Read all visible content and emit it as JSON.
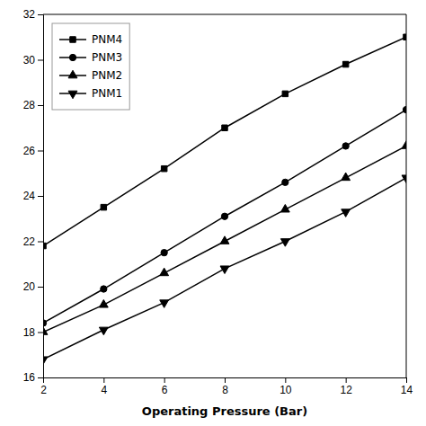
{
  "chart_data": {
    "type": "line",
    "x_label": "Operating Pressure (Bar)",
    "x": [
      2,
      4,
      6,
      8,
      10,
      12,
      14
    ],
    "series": [
      {
        "name": "PNM4",
        "color": "#000000",
        "marker": "square",
        "values": [
          21.8,
          23.5,
          25.2,
          27.0,
          28.5,
          29.8,
          31.0
        ]
      },
      {
        "name": "PNM3",
        "color": "#000000",
        "marker": "circle",
        "values": [
          18.4,
          19.9,
          21.5,
          23.1,
          24.6,
          26.2,
          27.8
        ]
      },
      {
        "name": "PNM2",
        "color": "#000000",
        "marker": "triangle-up",
        "values": [
          18.0,
          19.2,
          20.6,
          22.0,
          23.4,
          24.8,
          26.2
        ]
      },
      {
        "name": "PNM1",
        "color": "#000000",
        "marker": "triangle-down",
        "values": [
          16.8,
          18.1,
          19.3,
          20.8,
          22.0,
          23.3,
          24.8
        ]
      }
    ],
    "xlim": [
      2,
      14
    ],
    "xticks": [
      2,
      4,
      6,
      8,
      10,
      12,
      14
    ],
    "ylim": [
      16,
      32
    ],
    "yticks": [
      16,
      18,
      20,
      22,
      24,
      26,
      28,
      30,
      32
    ],
    "grid": false,
    "legend": "upper-left"
  }
}
